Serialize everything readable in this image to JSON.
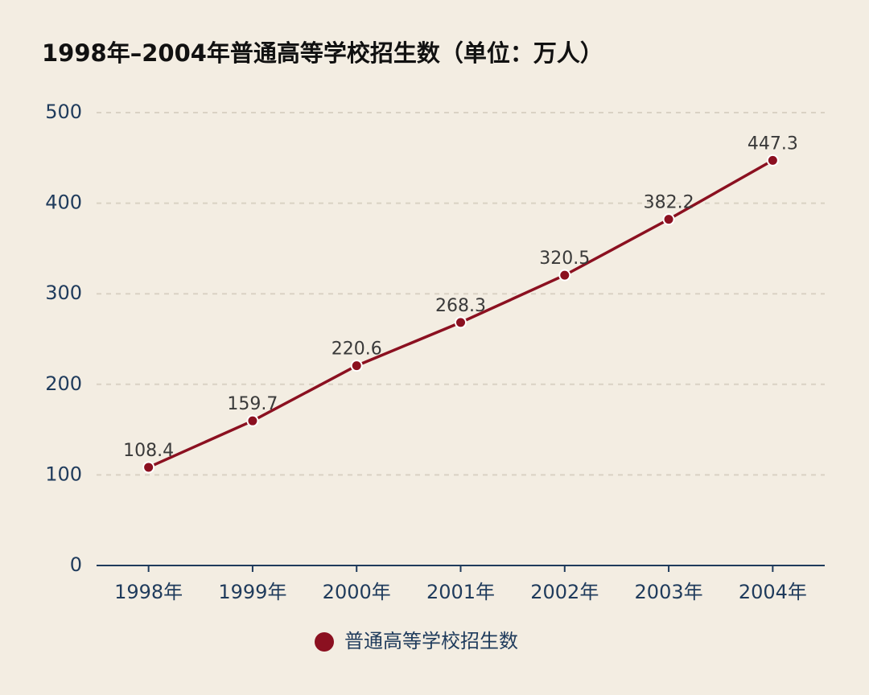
{
  "chart_data": {
    "type": "line",
    "title": "1998年–2004年普通高等学校招生数（单位：万人）",
    "categories": [
      "1998年",
      "1999年",
      "2000年",
      "2001年",
      "2002年",
      "2003年",
      "2004年"
    ],
    "series": [
      {
        "name": "普通高等学校招生数",
        "color": "#8b1020",
        "values": [
          108.4,
          159.7,
          220.6,
          268.3,
          320.5,
          382.2,
          447.3
        ]
      }
    ],
    "ylim": [
      0,
      500
    ],
    "yticks": [
      0,
      100,
      200,
      300,
      400,
      500
    ],
    "grid": true,
    "legend": "bottom"
  }
}
